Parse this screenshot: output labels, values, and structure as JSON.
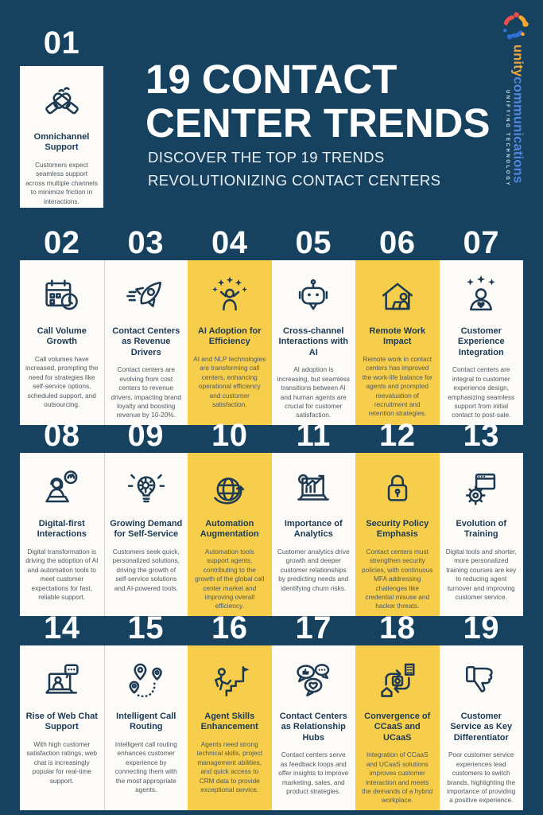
{
  "palette": {
    "background_navy": "#16425F",
    "card_white": "#FCFBF7",
    "highlight_yellow": "#F6CE4B",
    "ink_navy": "#1C3A55",
    "body_gray": "#4E5860",
    "logo_red": "#E8504A",
    "logo_orange": "#F6A62B",
    "logo_blue": "#2E6FD8"
  },
  "header": {
    "title_line1": "19 CONTACT",
    "title_line2": "CENTER TRENDS",
    "subtitle_line1": "DISCOVER THE TOP 19 TRENDS",
    "subtitle_line2": "REVOLUTIONIZING CONTACT CENTERS",
    "logo": {
      "brand_first": "unity",
      "brand_second": "communications",
      "tagline": "UNIFYING TECHNOLOGY"
    }
  },
  "trends": [
    {
      "number": "01",
      "title": "Omnichannel Support",
      "description": "Customers expect seamless support across multiple channels to minimize friction in interactions.",
      "icon": "clasped-hands",
      "highlighted": false
    },
    {
      "number": "02",
      "title": "Call Volume Growth",
      "description": "Call volumes have increased, prompting the need for strategies like self-service options, scheduled support, and outsourcing.",
      "icon": "calendar-clock",
      "highlighted": false
    },
    {
      "number": "03",
      "title": "Contact Centers as Revenue Drivers",
      "description": "Contact centers are evolving from cost centers to revenue drivers, impacting brand loyalty and boosting revenue by 10-20%.",
      "icon": "rocket",
      "highlighted": false
    },
    {
      "number": "04",
      "title": "AI Adoption for Efficiency",
      "description": "AI and NLP technologies are transforming call centers, enhancing operational efficiency and customer satisfaction.",
      "icon": "cheering-person-stars",
      "highlighted": true
    },
    {
      "number": "05",
      "title": "Cross-channel Interactions with AI",
      "description": "AI adoption is increasing, but seamless transitions between AI and human agents are crucial for customer satisfaction.",
      "icon": "chatbot",
      "highlighted": false
    },
    {
      "number": "06",
      "title": "Remote Work Impact",
      "description": "Remote work in contact centers has improved the work-life balance for agents and prompted reevaluation of recruitment and retention strategies.",
      "icon": "remote-work-house",
      "highlighted": true
    },
    {
      "number": "07",
      "title": "Customer Experience Integration",
      "description": "Contact centers are integral to customer experience design, emphasizing seamless support from initial contact to post-sale.",
      "icon": "customer-stars-heart",
      "highlighted": false
    },
    {
      "number": "08",
      "title": "Digital-first Interactions",
      "description": "Digital transformation is driving the adoption of AI and automation tools to meet customer expectations for fast, reliable support.",
      "icon": "support-agent-chat",
      "highlighted": false
    },
    {
      "number": "09",
      "title": "Growing Demand for Self-Service",
      "description": "Customers seek quick, personalized solutions, driving the growth of self-service solutions and AI-powered tools.",
      "icon": "idea-gear-bulb",
      "highlighted": false
    },
    {
      "number": "10",
      "title": "Automation Augmentation",
      "description": "Automation tools support agents, contributing to the growth of the global call center market and improving overall efficiency.",
      "icon": "globe-growth-arrow",
      "highlighted": true
    },
    {
      "number": "11",
      "title": "Importance of Analytics",
      "description": "Customer analytics drive growth and deeper customer relationships by predicting needs and identifying churn risks.",
      "icon": "analytics-laptop",
      "highlighted": false
    },
    {
      "number": "12",
      "title": "Security Policy Emphasis",
      "description": "Contact centers must strengthen security policies, with continuous MFA addressing challenges like credential misuse and hacker threats.",
      "icon": "padlock",
      "highlighted": true
    },
    {
      "number": "13",
      "title": "Evolution of Training",
      "description": "Digital tools and shorter, more personalized training courses are key to reducing agent turnover and improving customer service.",
      "icon": "gear-window",
      "highlighted": false
    },
    {
      "number": "14",
      "title": "Rise of Web Chat Support",
      "description": "With high customer satisfaction ratings, web chat is increasingly popular for real-time support.",
      "icon": "laptop-chat",
      "highlighted": false
    },
    {
      "number": "15",
      "title": "Intelligent Call Routing",
      "description": "Intelligent call routing enhances customer experience by connecting them with the most appropriate agents.",
      "icon": "map-route-pins",
      "highlighted": false
    },
    {
      "number": "16",
      "title": "Agent Skills Enhancement",
      "description": "Agents need strong technical skills, project management abilities, and quick access to CRM data to provide exceptional service.",
      "icon": "climb-flag",
      "highlighted": true
    },
    {
      "number": "17",
      "title": "Contact Centers as Relationship Hubs",
      "description": "Contact centers serve as feedback loops and offer insights to improve marketing, sales, and product strategies.",
      "icon": "feedback-bubbles",
      "highlighted": false
    },
    {
      "number": "18",
      "title": "Convergence of CCaaS and UCaaS",
      "description": "Integration of CCaaS and UCaaS solutions improves customer interaction and meets the demands of a hybrid workplace.",
      "icon": "sync-arrows-gear",
      "highlighted": true
    },
    {
      "number": "19",
      "title": "Customer Service as Key Differentiator",
      "description": "Poor customer service experiences lead customers to switch brands, highlighting the importance of providing a positive experience.",
      "icon": "thumbs-down",
      "highlighted": false
    }
  ]
}
